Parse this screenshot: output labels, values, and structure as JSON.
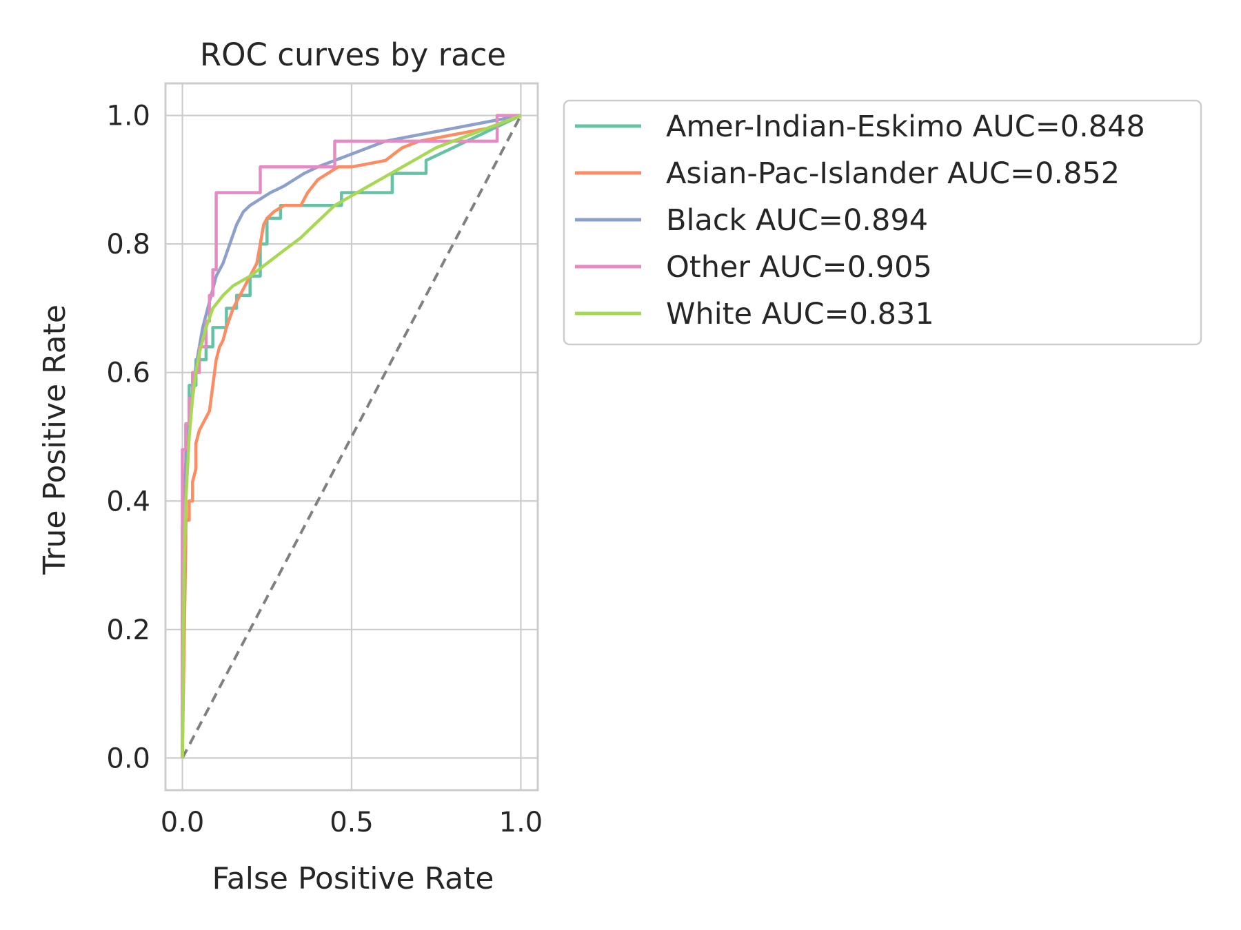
{
  "chart_data": {
    "type": "line",
    "title": "ROC curves by race",
    "xlabel": "False Positive Rate",
    "ylabel": "True Positive Rate",
    "xlim": [
      -0.05,
      1.05
    ],
    "ylim": [
      -0.05,
      1.05
    ],
    "xticks": [
      0.0,
      0.5,
      1.0
    ],
    "xtick_labels": [
      "0.0",
      "0.5",
      "1.0"
    ],
    "yticks": [
      0.0,
      0.2,
      0.4,
      0.6,
      0.8,
      1.0
    ],
    "ytick_labels": [
      "0.0",
      "0.2",
      "0.4",
      "0.6",
      "0.8",
      "1.0"
    ],
    "grid": true,
    "legend_position": "outside-right-top",
    "reference_line": {
      "x": [
        0,
        1
      ],
      "y": [
        0,
        1
      ],
      "color": "#808080",
      "style": "dashed"
    },
    "series": [
      {
        "name": "Amer-Indian-Eskimo  AUC=0.848",
        "color": "#66c2a5",
        "x": [
          0.0,
          0.0,
          0.01,
          0.01,
          0.02,
          0.02,
          0.04,
          0.04,
          0.07,
          0.07,
          0.09,
          0.09,
          0.13,
          0.13,
          0.16,
          0.16,
          0.2,
          0.2,
          0.23,
          0.23,
          0.25,
          0.25,
          0.29,
          0.29,
          0.47,
          0.47,
          0.62,
          0.62,
          0.72,
          0.72,
          1.0
        ],
        "y": [
          0.0,
          0.36,
          0.36,
          0.52,
          0.52,
          0.58,
          0.58,
          0.62,
          0.62,
          0.64,
          0.64,
          0.67,
          0.67,
          0.7,
          0.7,
          0.72,
          0.72,
          0.75,
          0.75,
          0.8,
          0.8,
          0.84,
          0.84,
          0.86,
          0.86,
          0.88,
          0.88,
          0.91,
          0.91,
          0.93,
          1.0
        ]
      },
      {
        "name": "Asian-Pac-Islander  AUC=0.852",
        "color": "#fc8d62",
        "x": [
          0.0,
          0.01,
          0.01,
          0.02,
          0.02,
          0.03,
          0.03,
          0.04,
          0.04,
          0.05,
          0.06,
          0.08,
          0.09,
          0.1,
          0.11,
          0.12,
          0.13,
          0.15,
          0.18,
          0.2,
          0.22,
          0.23,
          0.24,
          0.25,
          0.27,
          0.3,
          0.35,
          0.37,
          0.4,
          0.43,
          0.46,
          0.5,
          0.6,
          0.65,
          0.7,
          0.8,
          0.9,
          1.0
        ],
        "y": [
          0.0,
          0.34,
          0.37,
          0.37,
          0.4,
          0.4,
          0.43,
          0.45,
          0.49,
          0.51,
          0.52,
          0.54,
          0.58,
          0.62,
          0.64,
          0.65,
          0.67,
          0.7,
          0.73,
          0.75,
          0.77,
          0.8,
          0.83,
          0.84,
          0.85,
          0.86,
          0.86,
          0.88,
          0.9,
          0.91,
          0.92,
          0.92,
          0.93,
          0.95,
          0.96,
          0.97,
          0.98,
          1.0
        ]
      },
      {
        "name": "Black  AUC=0.894",
        "color": "#8da0cb",
        "x": [
          0.0,
          0.005,
          0.01,
          0.02,
          0.03,
          0.04,
          0.05,
          0.06,
          0.07,
          0.08,
          0.09,
          0.1,
          0.12,
          0.14,
          0.16,
          0.18,
          0.2,
          0.23,
          0.26,
          0.3,
          0.33,
          0.36,
          0.4,
          0.45,
          0.5,
          0.6,
          0.7,
          0.8,
          0.9,
          1.0
        ],
        "y": [
          0.0,
          0.4,
          0.46,
          0.52,
          0.57,
          0.61,
          0.64,
          0.67,
          0.69,
          0.71,
          0.73,
          0.75,
          0.77,
          0.8,
          0.83,
          0.85,
          0.86,
          0.87,
          0.88,
          0.89,
          0.9,
          0.91,
          0.92,
          0.93,
          0.94,
          0.96,
          0.97,
          0.98,
          0.99,
          1.0
        ]
      },
      {
        "name": "Other  AUC=0.905",
        "color": "#e78ac3",
        "x": [
          0.0,
          0.0,
          0.01,
          0.01,
          0.02,
          0.02,
          0.03,
          0.03,
          0.05,
          0.05,
          0.07,
          0.07,
          0.08,
          0.08,
          0.09,
          0.09,
          0.1,
          0.1,
          0.23,
          0.23,
          0.45,
          0.45,
          0.93,
          0.93,
          1.0
        ],
        "y": [
          0.0,
          0.48,
          0.48,
          0.52,
          0.52,
          0.56,
          0.56,
          0.6,
          0.6,
          0.64,
          0.64,
          0.68,
          0.68,
          0.72,
          0.72,
          0.76,
          0.76,
          0.88,
          0.88,
          0.92,
          0.92,
          0.96,
          0.96,
          1.0,
          1.0
        ]
      },
      {
        "name": "White  AUC=0.831",
        "color": "#a6d854",
        "x": [
          0.0,
          0.005,
          0.01,
          0.02,
          0.03,
          0.04,
          0.05,
          0.07,
          0.09,
          0.12,
          0.15,
          0.2,
          0.25,
          0.3,
          0.35,
          0.4,
          0.45,
          0.5,
          0.55,
          0.6,
          0.65,
          0.7,
          0.75,
          0.8,
          0.85,
          0.9,
          0.95,
          1.0
        ],
        "y": [
          0.0,
          0.3,
          0.4,
          0.5,
          0.56,
          0.6,
          0.63,
          0.67,
          0.7,
          0.72,
          0.735,
          0.75,
          0.77,
          0.79,
          0.81,
          0.835,
          0.86,
          0.875,
          0.89,
          0.905,
          0.92,
          0.935,
          0.95,
          0.96,
          0.97,
          0.98,
          0.99,
          1.0
        ]
      }
    ]
  }
}
